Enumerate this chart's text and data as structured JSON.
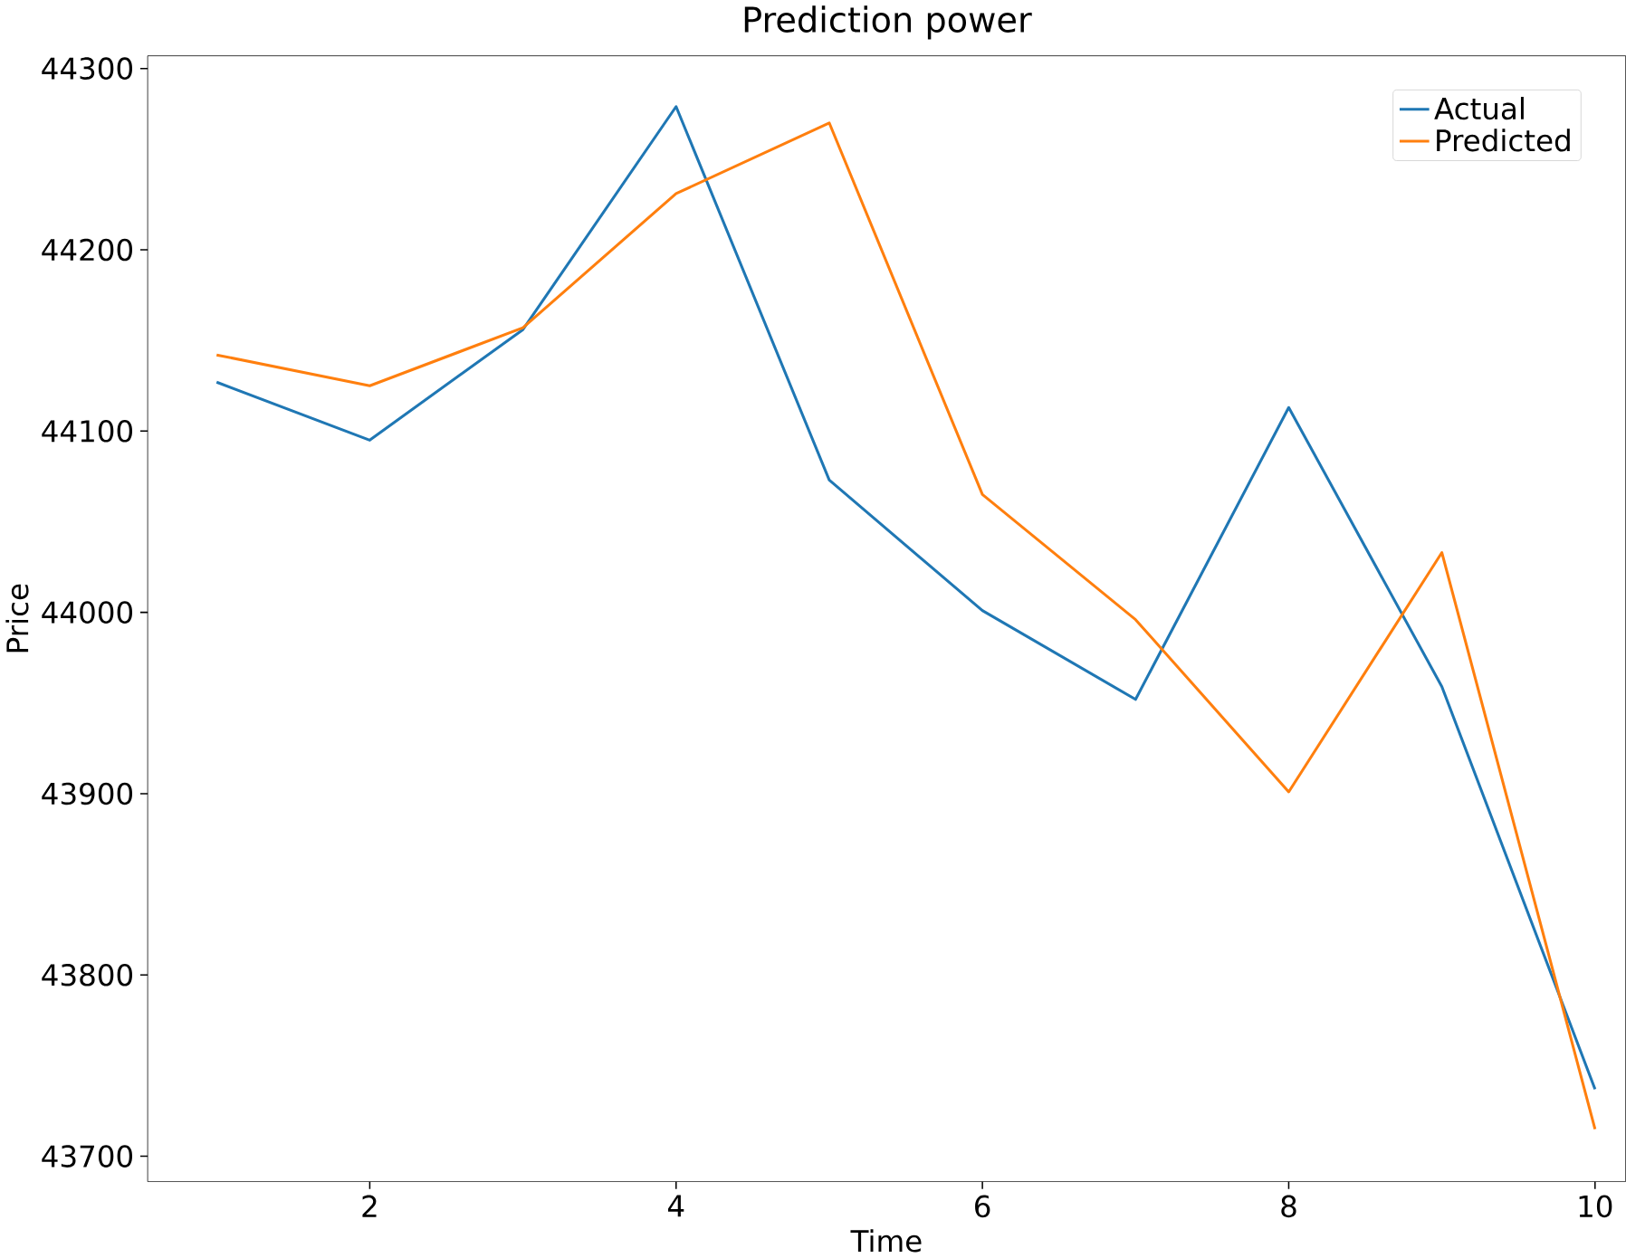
{
  "chart_data": {
    "type": "line",
    "title": "Prediction power",
    "xlabel": "Time",
    "ylabel": "Price",
    "x": [
      1,
      2,
      3,
      4,
      5,
      6,
      7,
      8,
      9,
      10
    ],
    "series": [
      {
        "name": "Actual",
        "color": "#1f77b4",
        "values": [
          44127,
          44095,
          44156,
          44279,
          44073,
          44001,
          43952,
          44113,
          43959,
          43737
        ]
      },
      {
        "name": "Predicted",
        "color": "#ff7f0e",
        "values": [
          44142,
          44125,
          44157,
          44231,
          44270,
          44065,
          43996,
          43901,
          44033,
          43715
        ]
      }
    ],
    "xlim": [
      0.55,
      10.2
    ],
    "ylim": [
      43686,
      44307
    ],
    "xticks": [
      2,
      4,
      6,
      8,
      10
    ],
    "yticks": [
      43700,
      43800,
      43900,
      44000,
      44100,
      44200,
      44300
    ],
    "legend": "top right",
    "grid": false,
    "marker": "none",
    "line_style": "solid"
  }
}
